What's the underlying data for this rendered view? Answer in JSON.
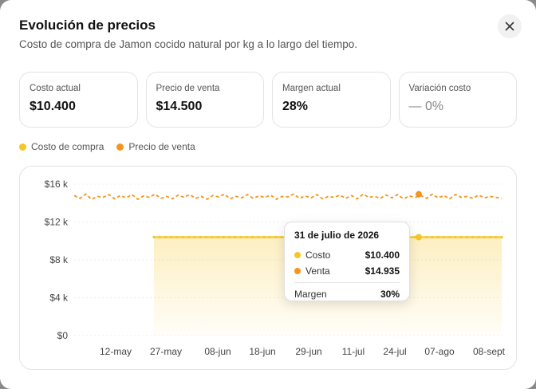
{
  "modal": {
    "title": "Evolución de precios",
    "subtitle": "Costo de compra de Jamon cocido natural por kg a lo largo del tiempo."
  },
  "stats": [
    {
      "label": "Costo actual",
      "value": "$10.400"
    },
    {
      "label": "Precio de venta",
      "value": "$14.500"
    },
    {
      "label": "Margen actual",
      "value": "28%"
    },
    {
      "label": "Variación costo",
      "value": "— 0%"
    }
  ],
  "legend": {
    "cost_label": "Costo de compra",
    "sale_label": "Precio de venta"
  },
  "colors": {
    "cost": "#f7c624",
    "sale": "#f5951c"
  },
  "icons": {
    "close": "close-icon"
  },
  "tooltip": {
    "date": "31 de julio de 2026",
    "cost_label": "Costo",
    "cost_value": "$10.400",
    "sale_label": "Venta",
    "sale_value": "$14.935",
    "margin_label": "Margen",
    "margin_value": "30%"
  },
  "chart_data": {
    "type": "line",
    "y_ticks": [
      "$0",
      "$4 k",
      "$8 k",
      "$12 k",
      "$16 k"
    ],
    "y_tick_values": [
      0,
      4000,
      8000,
      12000,
      16000
    ],
    "ylim": [
      0,
      16000
    ],
    "x_ticks": [
      "12-may",
      "27-may",
      "08-jun",
      "18-jun",
      "29-jun",
      "11-jul",
      "24-jul",
      "07-ago",
      "08-sept"
    ],
    "grid": true,
    "series": [
      {
        "name": "Costo de compra",
        "start_x": "27-may",
        "values": [
          10400,
          10400,
          10400,
          10400,
          10400,
          10400,
          10400,
          10400,
          10400,
          10400,
          10400,
          10400,
          10400,
          10400,
          10400,
          10400,
          10400,
          10400,
          10400,
          10400,
          10400,
          10400,
          10400,
          10400,
          10400,
          10400,
          10400,
          10400,
          10400,
          10400,
          10400,
          10400,
          10400,
          10400,
          10400,
          10400,
          10400,
          10400,
          10400,
          10400,
          10400,
          10400,
          10400,
          10400,
          10400,
          10400,
          10400,
          10400,
          10400,
          10400,
          10400,
          10400,
          10400,
          10400,
          10400,
          10400,
          10400,
          10400,
          10400,
          10400,
          10400
        ]
      },
      {
        "name": "Precio de venta",
        "values": [
          14800,
          14500,
          14950,
          14400,
          14700,
          14600,
          14900,
          14450,
          14800,
          14550,
          14900,
          14400,
          14750,
          14600,
          14950,
          14500,
          14700,
          14450,
          14850,
          14600,
          14900,
          14500,
          14700,
          14400,
          14800,
          14650,
          14950,
          14450,
          14700,
          14550,
          14900,
          14500,
          14750,
          14600,
          14850,
          14400,
          14700,
          14650,
          14950,
          14500,
          14750,
          14550,
          14900,
          14450,
          14700,
          14600,
          14850,
          14500,
          14800,
          14450,
          14950,
          14600,
          14700,
          14500,
          14850,
          14550,
          14900,
          14450,
          14750,
          14600,
          14800,
          14500,
          14935,
          14550,
          14800,
          14450,
          14900,
          14600,
          14700,
          14500,
          14850,
          14550,
          14700,
          14600,
          14500
        ]
      }
    ]
  }
}
